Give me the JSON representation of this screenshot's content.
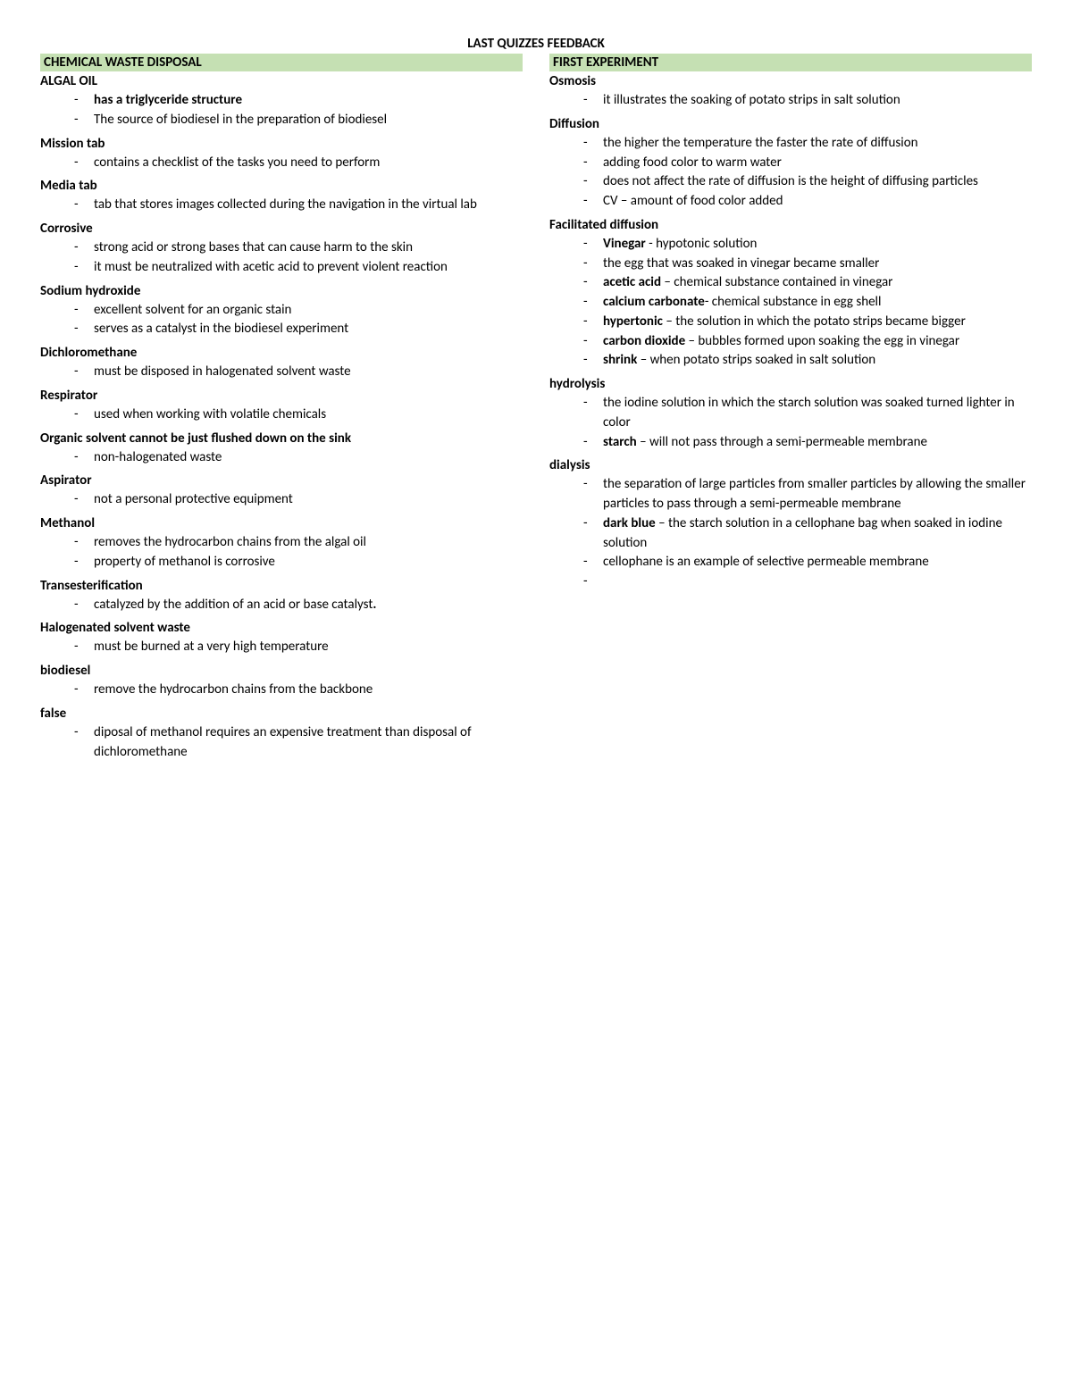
{
  "title": "LAST QUIZZES FEEDBACK",
  "left": {
    "header": "CHEMICAL WASTE DISPOSAL",
    "sections": [
      {
        "topic": "ALGAL OIL",
        "items": [
          [
            [
              "b",
              "has a triglyceride structure"
            ]
          ],
          [
            [
              "t",
              "The source of biodiesel in the preparation of biodiesel"
            ]
          ]
        ]
      },
      {
        "topic": "Mission tab",
        "items": [
          [
            [
              "t",
              "contains a checklist of the tasks you need to perform"
            ]
          ]
        ]
      },
      {
        "topic": "Media tab",
        "items": [
          [
            [
              "t",
              "tab that stores images collected during the navigation in the virtual lab"
            ]
          ]
        ]
      },
      {
        "topic": "Corrosive",
        "items": [
          [
            [
              "t",
              "strong acid or strong bases that can cause harm to the skin"
            ]
          ],
          [
            [
              "t",
              "it must be neutralized with acetic acid to prevent violent reaction"
            ]
          ]
        ]
      },
      {
        "topic": "Sodium hydroxide",
        "items": [
          [
            [
              "t",
              "excellent solvent for an organic stain"
            ]
          ],
          [
            [
              "t",
              "serves as a catalyst in the biodiesel experiment"
            ]
          ]
        ]
      },
      {
        "topic": "Dichloromethane",
        "items": [
          [
            [
              "t",
              "must be disposed in halogenated solvent waste"
            ]
          ]
        ]
      },
      {
        "topic": "Respirator",
        "items": [
          [
            [
              "t",
              "used when working with volatile chemicals"
            ]
          ]
        ]
      },
      {
        "topic": "Organic solvent cannot be just flushed down on the sink",
        "items": [
          [
            [
              "t",
              "non-halogenated waste"
            ]
          ]
        ]
      },
      {
        "topic": "Aspirator",
        "items": [
          [
            [
              "t",
              "not a personal protective equipment"
            ]
          ]
        ]
      },
      {
        "topic": "Methanol",
        "items": [
          [
            [
              "t",
              "removes the hydrocarbon chains from the algal oil"
            ]
          ],
          [
            [
              "t",
              "property of methanol is corrosive"
            ]
          ]
        ]
      },
      {
        "topic": "Transesterification",
        "items": [
          [
            [
              "t",
              "catalyzed by the addition of an acid or base catalyst"
            ],
            [
              "b",
              "."
            ]
          ]
        ]
      },
      {
        "topic": "Halogenated solvent waste",
        "items": [
          [
            [
              "t",
              "must be burned at a very high temperature"
            ]
          ]
        ]
      },
      {
        "topic": "biodiesel",
        "items": [
          [
            [
              "t",
              "remove the hydrocarbon chains from the backbone"
            ]
          ]
        ]
      },
      {
        "topic": "false",
        "items": [
          [
            [
              "t",
              "diposal of methanol requires an expensive treatment than disposal of dichloromethane"
            ]
          ]
        ]
      }
    ]
  },
  "right": {
    "header": "FIRST EXPERIMENT",
    "sections": [
      {
        "topic": "Osmosis",
        "items": [
          [
            [
              "t",
              "it illustrates the soaking of potato strips in salt solution"
            ]
          ]
        ]
      },
      {
        "topic": "Diffusion",
        "items": [
          [
            [
              "t",
              "the higher the temperature the faster the rate of diffusion"
            ]
          ],
          [
            [
              "t",
              "adding food color to warm water"
            ]
          ],
          [
            [
              "t",
              "does not affect the rate of diffusion is the height of diffusing particles"
            ]
          ],
          [
            [
              "t",
              "CV – amount of food color added"
            ]
          ]
        ]
      },
      {
        "topic": "Facilitated diffusion",
        "items": [
          [
            [
              "b",
              "Vinegar"
            ],
            [
              "t",
              " - hypotonic solution"
            ]
          ],
          [
            [
              "t",
              "the egg that was soaked in vinegar became smaller"
            ]
          ],
          [
            [
              "b",
              "acetic acid"
            ],
            [
              "t",
              " – chemical substance contained in vinegar"
            ]
          ],
          [
            [
              "b",
              "calcium carbonate"
            ],
            [
              "t",
              "- chemical substance in egg shell"
            ]
          ],
          [
            [
              "b",
              "hypertonic"
            ],
            [
              "t",
              " – the solution in which the potato strips became bigger"
            ]
          ],
          [
            [
              "b",
              "carbon dioxide"
            ],
            [
              "t",
              " – bubbles formed upon soaking the egg in vinegar"
            ]
          ],
          [
            [
              "b",
              "shrink"
            ],
            [
              "t",
              " – when potato strips soaked in salt solution"
            ]
          ]
        ]
      },
      {
        "topic": "hydrolysis",
        "items": [
          [
            [
              "t",
              "the iodine solution in which the starch solution was soaked turned lighter in color"
            ]
          ],
          [
            [
              "b",
              "starch"
            ],
            [
              "t",
              " – will not pass through a semi-permeable membrane"
            ]
          ]
        ]
      },
      {
        "topic": "dialysis",
        "items": [
          [
            [
              "t",
              "the separation of large particles from smaller particles by allowing the smaller particles to pass through a semi-permeable membrane"
            ]
          ],
          [
            [
              "b",
              "dark blue"
            ],
            [
              "t",
              " – the starch solution in a cellophane bag when soaked in iodine solution"
            ]
          ],
          [
            [
              "t",
              "cellophane is an example of selective permeable membrane"
            ]
          ],
          [
            [
              "t",
              ""
            ]
          ]
        ]
      }
    ]
  }
}
